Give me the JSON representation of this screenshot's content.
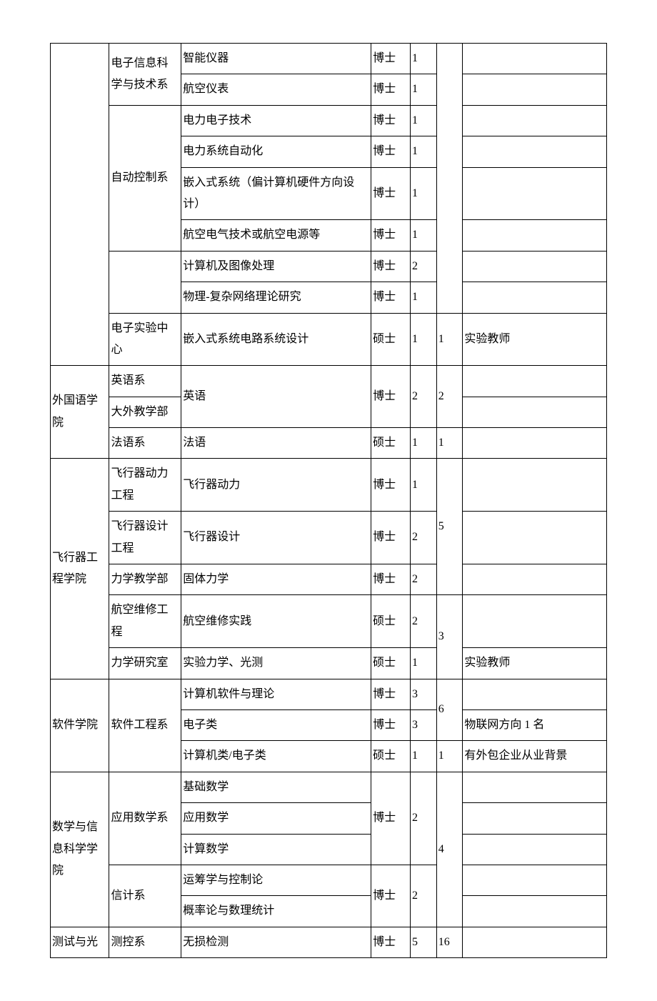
{
  "table": {
    "border_color": "#000000",
    "background_color": "#ffffff",
    "text_color": "#000000",
    "font_size_pt": 12,
    "column_widths_pct": [
      9,
      11,
      29,
      6,
      4,
      4,
      22
    ],
    "rows": [
      {
        "c1": "电子信息科学与技术系",
        "c1_rowspan": 2,
        "c2": "智能仪器",
        "c3": "博士",
        "c4": "1",
        "c6": ""
      },
      {
        "c2": "航空仪表",
        "c3": "博士",
        "c4": "1",
        "c6": ""
      },
      {
        "c1": "自动控制系",
        "c1_rowspan": 4,
        "c2": "电力电子技术",
        "c3": "博士",
        "c4": "1",
        "c6": ""
      },
      {
        "c2": "电力系统自动化",
        "c3": "博士",
        "c4": "1",
        "c6": ""
      },
      {
        "c2": "嵌入式系统（偏计算机硬件方向设计）",
        "c3": "博士",
        "c4": "1",
        "c6": ""
      },
      {
        "c2": "航空电气技术或航空电源等",
        "c3": "博士",
        "c4": "1",
        "c6": ""
      },
      {
        "c1": "",
        "c1_rowspan": 2,
        "c2": "计算机及图像处理",
        "c3": "博士",
        "c4": "2",
        "c6": ""
      },
      {
        "c2": "物理-复杂网络理论研究",
        "c3": "博士",
        "c4": "1",
        "c6": ""
      },
      {
        "c1": "电子实验中心",
        "c2": "嵌入式系统电路系统设计",
        "c3": "硕士",
        "c4": "1",
        "c5": "1",
        "c6": "实验教师"
      },
      {
        "c0": "外国语学院",
        "c0_rowspan": 3,
        "c1": "英语系",
        "c2": "英语",
        "c2_rowspan": 2,
        "c3": "博士",
        "c3_rowspan": 2,
        "c4": "2",
        "c4_rowspan": 2,
        "c5": "2",
        "c5_rowspan": 2,
        "c6": ""
      },
      {
        "c1": "大外教学部",
        "c6": ""
      },
      {
        "c1": "法语系",
        "c2": "法语",
        "c3": "硕士",
        "c4": "1",
        "c5": "1",
        "c6": ""
      },
      {
        "c0": "飞行器工程学院",
        "c0_rowspan": 5,
        "c1": "飞行器动力工程",
        "c2": "飞行器动力",
        "c3": "博士",
        "c4": "1",
        "c5": "5",
        "c5_rowspan": 3,
        "c6": ""
      },
      {
        "c1": "飞行器设计工程",
        "c2": "飞行器设计",
        "c3": "博士",
        "c4": "2",
        "c6": ""
      },
      {
        "c1": "力学教学部",
        "c2": "固体力学",
        "c3": "博士",
        "c4": "2",
        "c6": ""
      },
      {
        "c1": "航空维修工程",
        "c2": "航空维修实践",
        "c3": "硕士",
        "c4": "2",
        "c5": "3",
        "c5_rowspan": 2,
        "c6": ""
      },
      {
        "c1": "力学研究室",
        "c2": "实验力学、光测",
        "c3": "硕士",
        "c4": "1",
        "c6": "实验教师"
      },
      {
        "c0": "软件学院",
        "c0_rowspan": 3,
        "c1": "软件工程系",
        "c1_rowspan": 3,
        "c2": "计算机软件与理论",
        "c3": "博士",
        "c4": "3",
        "c5": "6",
        "c5_rowspan": 2,
        "c6": ""
      },
      {
        "c2": "电子类",
        "c3": "博士",
        "c4": "3",
        "c6": "物联网方向 1 名"
      },
      {
        "c2": "计算机类/电子类",
        "c3": "硕士",
        "c4": "1",
        "c5": "1",
        "c6": "有外包企业从业背景"
      },
      {
        "c0": "数学与信息科学学院",
        "c0_rowspan": 5,
        "c1": "应用数学系",
        "c1_rowspan": 3,
        "c2": "基础数学",
        "c3": "博士",
        "c3_rowspan": 3,
        "c4": "2",
        "c4_rowspan": 3,
        "c5": "4",
        "c5_rowspan": 5,
        "c6": ""
      },
      {
        "c2": "应用数学",
        "c6": ""
      },
      {
        "c2": "计算数学",
        "c6": ""
      },
      {
        "c1": "信计系",
        "c1_rowspan": 2,
        "c2": "运筹学与控制论",
        "c3": "博士",
        "c3_rowspan": 2,
        "c4": "2",
        "c4_rowspan": 2,
        "c6": ""
      },
      {
        "c2": "概率论与数理统计",
        "c6": ""
      },
      {
        "c0": "测试与光",
        "c1": "测控系",
        "c2": "无损检测",
        "c3": "博士",
        "c4": "5",
        "c5": "16",
        "c6": ""
      }
    ]
  }
}
